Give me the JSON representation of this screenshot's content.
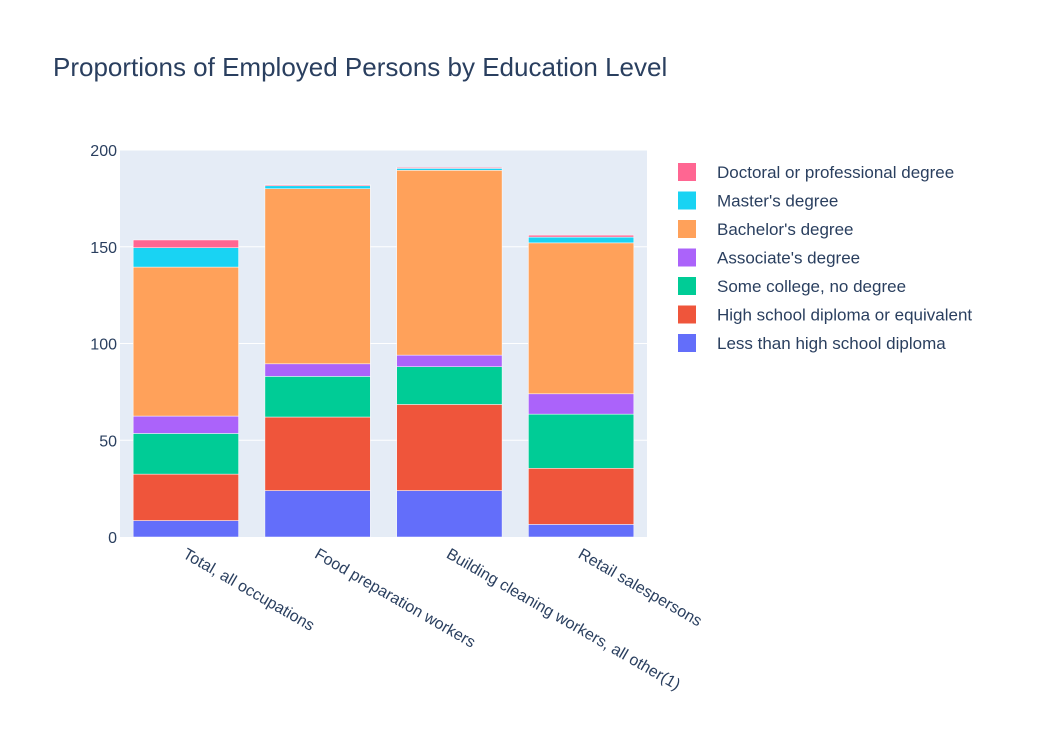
{
  "chart_data": {
    "type": "bar",
    "stacked": true,
    "title": "Proportions of Employed Persons by Education Level",
    "xlabel": "",
    "ylabel": "",
    "ylim": [
      0,
      200
    ],
    "yticks": [
      0,
      50,
      100,
      150,
      200
    ],
    "grid": true,
    "legend_position": "right",
    "categories": [
      "Total, all occupations",
      "Food preparation workers",
      "Building cleaning workers, all other(1)",
      "Retail salespersons"
    ],
    "series": [
      {
        "name": "Less than high school diploma",
        "color": "#636efa",
        "values": [
          8.5,
          24,
          24,
          6.5
        ]
      },
      {
        "name": "High school diploma or equivalent",
        "color": "#ef553b",
        "values": [
          24,
          38,
          44.5,
          29
        ]
      },
      {
        "name": "Some college, no degree",
        "color": "#00cc96",
        "values": [
          21,
          21,
          19.5,
          28
        ]
      },
      {
        "name": "Associate's degree",
        "color": "#ab63fa",
        "values": [
          9,
          6.5,
          6,
          10.5
        ]
      },
      {
        "name": "Bachelor's degree",
        "color": "#ffa15a",
        "values": [
          77,
          90.5,
          95.5,
          78
        ]
      },
      {
        "name": "Master's degree",
        "color": "#19d3f3",
        "values": [
          10,
          1.5,
          1,
          3
        ]
      },
      {
        "name": "Doctoral or professional degree",
        "color": "#ff6692",
        "values": [
          4,
          0.5,
          0.5,
          1
        ]
      }
    ]
  }
}
